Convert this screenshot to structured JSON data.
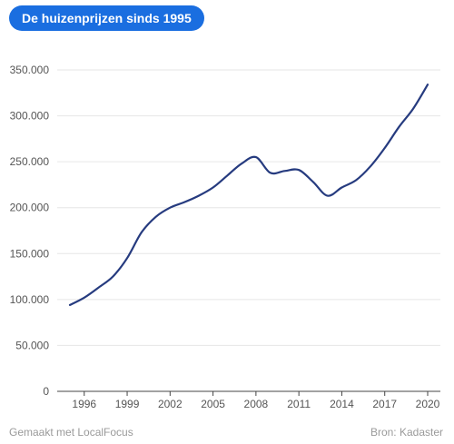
{
  "header": {
    "title": "De huizenprijzen sinds 1995"
  },
  "footer": {
    "credit": "Gemaakt met LocalFocus",
    "source": "Bron: Kadaster"
  },
  "colors": {
    "line": "#263b7f",
    "badge": "#1a6ee0",
    "grid": "#e6e6e6"
  },
  "chart_data": {
    "type": "line",
    "title": "De huizenprijzen sinds 1995",
    "xlabel": "",
    "ylabel": "",
    "x": [
      1995,
      1996,
      1997,
      1998,
      1999,
      2000,
      2001,
      2002,
      2003,
      2004,
      2005,
      2006,
      2007,
      2008,
      2009,
      2010,
      2011,
      2012,
      2013,
      2014,
      2015,
      2016,
      2017,
      2018,
      2019,
      2020
    ],
    "series": [
      {
        "values": [
          94000,
          102000,
          113000,
          125000,
          145000,
          173000,
          190000,
          200000,
          206000,
          213000,
          222000,
          235000,
          248000,
          255000,
          238000,
          240000,
          241000,
          228000,
          213000,
          222000,
          230000,
          245000,
          265000,
          288000,
          308000,
          334000
        ]
      }
    ],
    "xticks": [
      1996,
      1999,
      2002,
      2005,
      2008,
      2011,
      2014,
      2017,
      2020
    ],
    "yticks": [
      0,
      50000,
      100000,
      150000,
      200000,
      250000,
      300000,
      350000
    ],
    "ytick_labels": [
      "0",
      "50.000",
      "100.000",
      "150.000",
      "200.000",
      "250.000",
      "300.000",
      "350.000"
    ],
    "xlim": [
      1995,
      2020
    ],
    "ylim": [
      0,
      350000
    ],
    "grid": "horizontal",
    "legend": "none"
  }
}
